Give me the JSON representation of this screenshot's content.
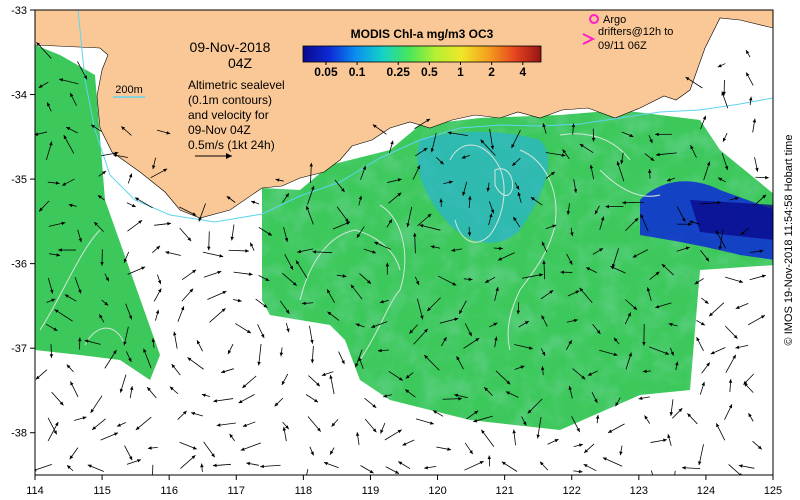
{
  "title": {
    "date": "09-Nov-2018",
    "time": "04Z"
  },
  "colorbar": {
    "title": "MODIS Chl-a mg/m3 OC3",
    "ticks": [
      "0.05",
      "0.1",
      "0.25",
      "0.5",
      "1",
      "2",
      "4"
    ],
    "tick_values": [
      0.05,
      0.1,
      0.25,
      0.5,
      1,
      2,
      4
    ],
    "range": [
      0.03,
      6
    ],
    "scale": "log",
    "colors": [
      "#0a0a8c",
      "#0c2ad6",
      "#0a8ff0",
      "#14d2c8",
      "#46e65a",
      "#b4f032",
      "#f0e628",
      "#f5a01e",
      "#e6461e",
      "#961414"
    ]
  },
  "legend": {
    "isobath_label": "200m",
    "isobath_color": "#5fd4f0",
    "altimetry_lines": [
      "Altimetric sealevel",
      "(0.1m contours)",
      "and velocity for",
      "09-Nov 04Z"
    ],
    "velocity_scale": "0.5m/s (1kt 24h)",
    "argo_label": "Argo",
    "drifter_lines": [
      "drifters@12h to",
      "09/11 06Z"
    ],
    "argo_color": "#ff1ec8"
  },
  "axes": {
    "x_ticks": [
      "114",
      "115",
      "116",
      "117",
      "118",
      "119",
      "120",
      "121",
      "122",
      "123",
      "124",
      "125"
    ],
    "x_values": [
      114,
      115,
      116,
      117,
      118,
      119,
      120,
      121,
      122,
      123,
      124,
      125
    ],
    "y_ticks": [
      "-33",
      "-34",
      "-35",
      "-36",
      "-37",
      "-38"
    ],
    "y_values": [
      -33,
      -34,
      -35,
      -36,
      -37,
      -38
    ],
    "xlim": [
      114,
      125
    ],
    "ylim": [
      -38.5,
      -33
    ]
  },
  "colors": {
    "land": "#fac896",
    "ocean": "#ffffff",
    "chl_mid": "#3cc85a",
    "chl_low": "#28b4d2",
    "contour": "#d2e6dc"
  },
  "credit": "© IMOS 19-Nov-2018 11:54:58 Hobart time"
}
